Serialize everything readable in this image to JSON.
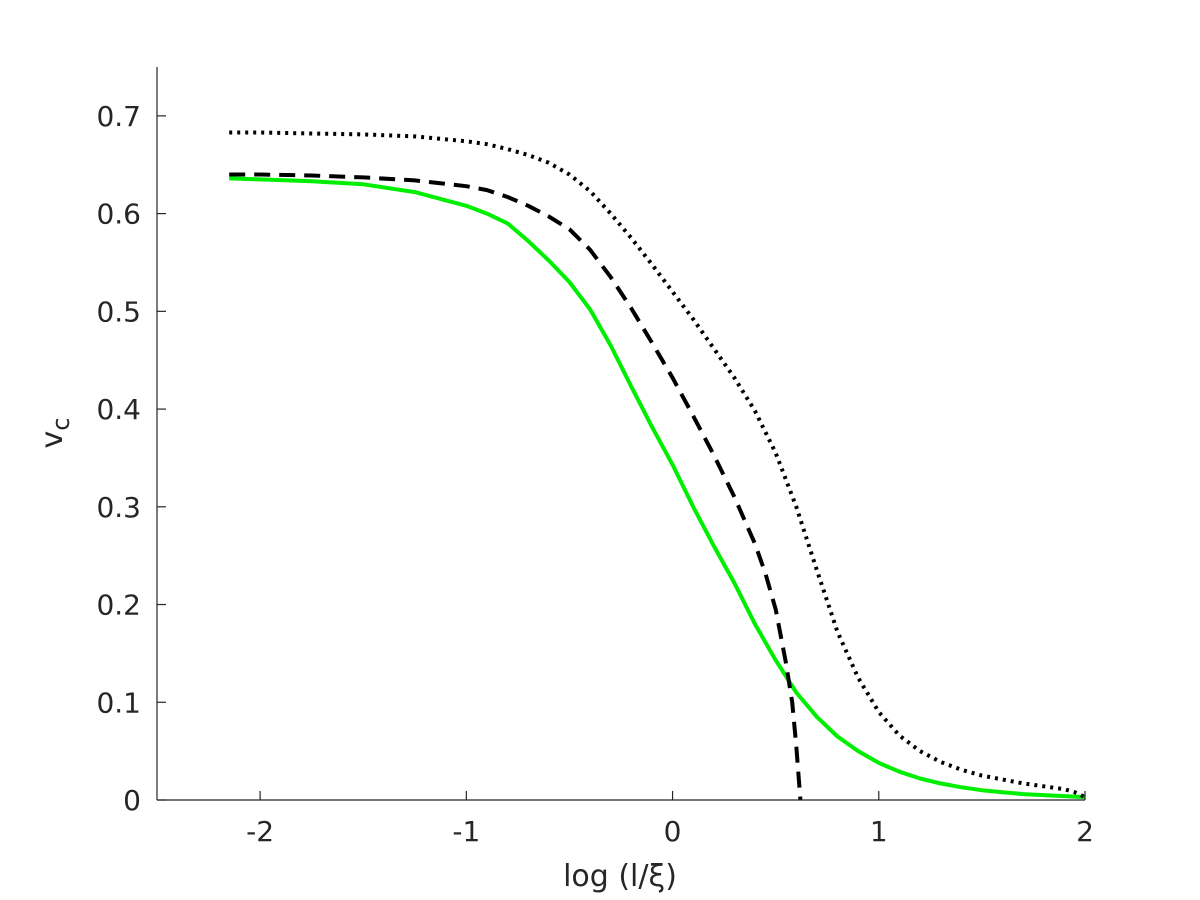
{
  "chart_data": {
    "type": "line",
    "xlabel": "log (l/ξ)",
    "ylabel": "v",
    "ylabel_subscript": "c",
    "xlim": [
      -2.5,
      2.0
    ],
    "ylim": [
      0,
      0.75
    ],
    "x_ticks": [
      -2,
      -1,
      0,
      1,
      2
    ],
    "x_tick_labels": [
      "-2",
      "-1",
      "0",
      "1",
      "2"
    ],
    "y_ticks": [
      0,
      0.1,
      0.2,
      0.3,
      0.4,
      0.5,
      0.6,
      0.7
    ],
    "y_tick_labels": [
      "0",
      "0.1",
      "0.2",
      "0.3",
      "0.4",
      "0.5",
      "0.6",
      "0.7"
    ],
    "grid": false,
    "legend": "none",
    "series": [
      {
        "color": "#00ee00",
        "style": "solid",
        "x": [
          -2.15,
          -2.0,
          -1.75,
          -1.5,
          -1.25,
          -1.0,
          -0.9,
          -0.8,
          -0.7,
          -0.6,
          -0.5,
          -0.4,
          -0.3,
          -0.2,
          -0.1,
          0.0,
          0.1,
          0.2,
          0.3,
          0.4,
          0.5,
          0.6,
          0.7,
          0.8,
          0.9,
          1.0,
          1.1,
          1.2,
          1.3,
          1.4,
          1.5,
          1.6,
          1.7,
          1.8,
          1.9,
          2.0
        ],
        "y": [
          0.636,
          0.635,
          0.633,
          0.63,
          0.622,
          0.608,
          0.6,
          0.59,
          0.572,
          0.552,
          0.53,
          0.502,
          0.465,
          0.423,
          0.382,
          0.343,
          0.3,
          0.26,
          0.222,
          0.18,
          0.143,
          0.11,
          0.085,
          0.065,
          0.05,
          0.038,
          0.029,
          0.022,
          0.017,
          0.013,
          0.01,
          0.008,
          0.006,
          0.005,
          0.004,
          0.003
        ]
      },
      {
        "color": "#000000",
        "style": "dashed",
        "x": [
          -2.15,
          -2.0,
          -1.75,
          -1.5,
          -1.25,
          -1.0,
          -0.9,
          -0.8,
          -0.7,
          -0.6,
          -0.5,
          -0.4,
          -0.3,
          -0.2,
          -0.1,
          0.0,
          0.1,
          0.2,
          0.3,
          0.4,
          0.45,
          0.5,
          0.55,
          0.58,
          0.6,
          0.62
        ],
        "y": [
          0.64,
          0.64,
          0.639,
          0.637,
          0.634,
          0.628,
          0.624,
          0.617,
          0.608,
          0.597,
          0.584,
          0.563,
          0.535,
          0.503,
          0.468,
          0.432,
          0.393,
          0.353,
          0.31,
          0.262,
          0.232,
          0.195,
          0.14,
          0.1,
          0.055,
          0.0
        ]
      },
      {
        "color": "#000000",
        "style": "dotted",
        "x": [
          -2.15,
          -2.0,
          -1.75,
          -1.5,
          -1.25,
          -1.0,
          -0.9,
          -0.8,
          -0.7,
          -0.6,
          -0.5,
          -0.4,
          -0.3,
          -0.2,
          -0.1,
          0.0,
          0.1,
          0.2,
          0.3,
          0.4,
          0.5,
          0.6,
          0.7,
          0.8,
          0.9,
          1.0,
          1.1,
          1.2,
          1.3,
          1.4,
          1.5,
          1.6,
          1.7,
          1.8,
          1.9,
          1.95,
          2.0
        ],
        "y": [
          0.683,
          0.683,
          0.682,
          0.681,
          0.679,
          0.674,
          0.671,
          0.666,
          0.66,
          0.652,
          0.64,
          0.623,
          0.6,
          0.575,
          0.548,
          0.52,
          0.492,
          0.462,
          0.432,
          0.398,
          0.355,
          0.3,
          0.235,
          0.172,
          0.125,
          0.09,
          0.066,
          0.05,
          0.039,
          0.031,
          0.025,
          0.021,
          0.017,
          0.014,
          0.011,
          0.008,
          0.003
        ]
      }
    ]
  }
}
